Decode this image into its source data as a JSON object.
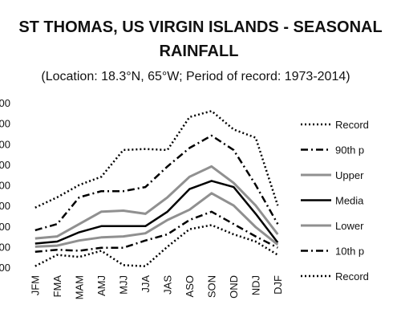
{
  "chart_data": {
    "type": "line",
    "title_line1": "ST THOMAS, US VIRGIN ISLANDS - SEASONAL",
    "title_line2": "RAINFALL",
    "subtitle": "(Location: 18.3°N, 65°W; Period of record: 1973-2014)",
    "categories": [
      "JFM",
      "FMA",
      "MAM",
      "AMJ",
      "MJJ",
      "JJA",
      "JAS",
      "ASO",
      "SON",
      "OND",
      "NDJ",
      "DJF"
    ],
    "y_tick_labels": [
      "00",
      "00",
      "00",
      "00",
      "00",
      "00",
      "00",
      "00",
      "00"
    ],
    "ylim": [
      0,
      8
    ],
    "grid": false,
    "legend_position": "right",
    "series": [
      {
        "name": "Record",
        "color": "#000000",
        "style": "dotted",
        "width": 2.5,
        "values": [
          2.9,
          3.4,
          4.0,
          4.4,
          5.7,
          5.75,
          5.7,
          7.3,
          7.6,
          6.7,
          6.3,
          3.0
        ]
      },
      {
        "name": "90th p",
        "color": "#000000",
        "style": "dashdot",
        "width": 2.5,
        "values": [
          1.8,
          2.1,
          3.4,
          3.7,
          3.7,
          3.9,
          4.9,
          5.8,
          6.4,
          5.7,
          4.0,
          2.1
        ]
      },
      {
        "name": "Upper",
        "color": "#909090",
        "style": "solid",
        "width": 3,
        "values": [
          1.4,
          1.5,
          2.1,
          2.7,
          2.75,
          2.6,
          3.4,
          4.4,
          4.9,
          4.1,
          3.0,
          1.6
        ]
      },
      {
        "name": "Media",
        "color": "#000000",
        "style": "solid",
        "width": 2.5,
        "values": [
          1.15,
          1.25,
          1.7,
          2.0,
          2.0,
          2.0,
          2.7,
          3.8,
          4.2,
          3.9,
          2.6,
          1.2
        ]
      },
      {
        "name": "Lower",
        "color": "#909090",
        "style": "solid",
        "width": 3,
        "values": [
          1.0,
          1.05,
          1.3,
          1.45,
          1.5,
          1.65,
          2.3,
          2.8,
          3.6,
          3.0,
          1.95,
          1.1
        ]
      },
      {
        "name": "10th p",
        "color": "#000000",
        "style": "dashdot",
        "width": 2.5,
        "values": [
          0.75,
          0.85,
          0.8,
          0.95,
          0.95,
          1.3,
          1.6,
          2.3,
          2.7,
          2.1,
          1.5,
          0.95
        ]
      },
      {
        "name": "Record",
        "color": "#000000",
        "style": "dotted",
        "width": 2.5,
        "values": [
          0.05,
          0.6,
          0.5,
          0.8,
          0.1,
          0.05,
          1.0,
          1.85,
          2.05,
          1.6,
          1.25,
          0.6
        ]
      }
    ]
  }
}
